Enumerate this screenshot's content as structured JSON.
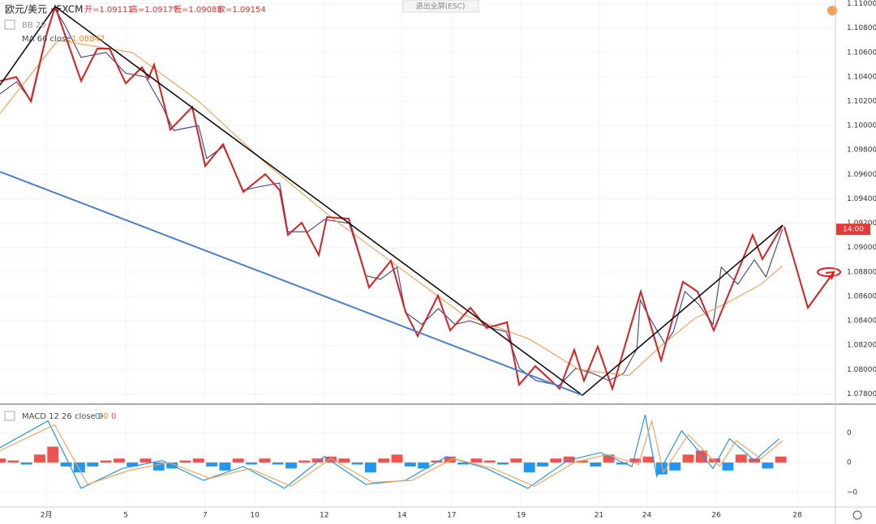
{
  "exit_button": "退出全屏(ESC)",
  "chart_data": [
    {
      "type": "line",
      "title": "欧元/美元 · FXCM",
      "ohlc": [
        "开=1.09111",
        "高=1.09177",
        "低=1.09085",
        "收=1.09154"
      ],
      "indicators": [
        "BB 20"
      ],
      "price_tag": "14:00",
      "xlim": [
        0,
        505
      ],
      "ylim": [
        1.0773,
        1.1103
      ],
      "grid": true,
      "xticks": [
        {
          "value": 28,
          "label": "2月"
        },
        {
          "value": 76,
          "label": "5"
        },
        {
          "value": 124,
          "label": "7"
        },
        {
          "value": 154,
          "label": "10"
        },
        {
          "value": 196,
          "label": "12"
        },
        {
          "value": 243,
          "label": "14"
        },
        {
          "value": 273,
          "label": "17"
        },
        {
          "value": 315,
          "label": "19"
        },
        {
          "value": 362,
          "label": "21"
        },
        {
          "value": 391,
          "label": "24"
        },
        {
          "value": 433,
          "label": "26"
        },
        {
          "value": 482,
          "label": "28"
        }
      ],
      "yticks": [
        {
          "value": 1.078,
          "label": "1.07800"
        },
        {
          "value": 1.08,
          "label": "1.08000"
        },
        {
          "value": 1.082,
          "label": "1.08200"
        },
        {
          "value": 1.084,
          "label": "1.08400"
        },
        {
          "value": 1.086,
          "label": "1.08600"
        },
        {
          "value": 1.088,
          "label": "1.08800"
        },
        {
          "value": 1.09,
          "label": "1.09000"
        },
        {
          "value": 1.092,
          "label": "1.09200"
        },
        {
          "value": 1.094,
          "label": "1.09400"
        },
        {
          "value": 1.096,
          "label": "1.09600"
        },
        {
          "value": 1.098,
          "label": "1.09800"
        },
        {
          "value": 1.1,
          "label": "1.10000"
        },
        {
          "value": 1.102,
          "label": "1.10200"
        },
        {
          "value": 1.104,
          "label": "1.10400"
        },
        {
          "value": 1.106,
          "label": "1.10600"
        },
        {
          "value": 1.108,
          "label": "1.10800"
        },
        {
          "value": 1.11,
          "label": "1.11000"
        }
      ],
      "series": [
        {
          "name": "欧元/美元",
          "style": "line",
          "color": "#4b4f8c",
          "x": [
            0,
            10,
            19,
            28,
            33,
            39,
            49,
            64,
            76,
            88,
            98,
            105,
            120,
            125,
            135,
            147,
            157,
            169,
            174,
            186,
            196,
            211,
            221,
            230,
            240,
            245,
            255,
            265,
            275,
            284,
            297,
            306,
            314,
            324,
            338,
            348,
            358,
            368,
            377,
            385,
            387,
            392,
            402,
            407,
            414,
            422,
            431,
            436,
            446,
            456,
            463,
            473
          ],
          "values": [
            1.1026,
            1.1036,
            1.102,
            1.1073,
            1.1096,
            1.1083,
            1.1056,
            1.106,
            1.1043,
            1.104,
            1.1016,
            1.0996,
            1.1,
            1.0973,
            1.0983,
            1.0947,
            1.095,
            1.0953,
            1.0913,
            1.0913,
            1.0923,
            1.092,
            1.0877,
            1.0874,
            1.0884,
            1.0847,
            1.0837,
            1.085,
            1.0837,
            1.084,
            1.0834,
            1.0831,
            1.0801,
            1.0791,
            1.0787,
            1.0801,
            1.0797,
            1.0791,
            1.0797,
            1.0817,
            1.0857,
            1.0844,
            1.0821,
            1.0831,
            1.0864,
            1.0854,
            1.0837,
            1.0884,
            1.087,
            1.089,
            1.0876,
            1.0915
          ]
        },
        {
          "name": "MA 66 close",
          "style": "line",
          "color": "#f5a35c",
          "last_value": 1.08847,
          "x": [
            0,
            35,
            80,
            120,
            160,
            200,
            240,
            280,
            320,
            350,
            380,
            400,
            420,
            440,
            460,
            473
          ],
          "values": [
            1.101,
            1.107,
            1.106,
            1.102,
            1.097,
            1.0925,
            1.0885,
            1.0845,
            1.0825,
            1.08,
            1.0795,
            1.082,
            1.0842,
            1.0855,
            1.087,
            1.0885
          ]
        }
      ]
    },
    {
      "type": "line",
      "title": "MACD 12 26 close 9",
      "legend_values": [
        0,
        0,
        0
      ],
      "xlim": [
        0,
        505
      ],
      "ylim": [
        -0.0022,
        0.0029
      ],
      "yticks": [
        {
          "value": -0.0015,
          "label": "−0"
        },
        0,
        {
          "value": 0.0015,
          "label": "0"
        }
      ],
      "series": [
        {
          "name": "Histogram",
          "style": "bar",
          "color": "#ef5350",
          "negative_color": "#2196f3",
          "x": [
            0,
            8,
            16,
            24,
            32,
            40,
            48,
            56,
            64,
            72,
            80,
            88,
            96,
            104,
            112,
            120,
            128,
            136,
            144,
            152,
            160,
            168,
            176,
            184,
            192,
            200,
            208,
            216,
            224,
            232,
            240,
            248,
            256,
            264,
            272,
            280,
            288,
            296,
            304,
            312,
            320,
            328,
            336,
            344,
            352,
            360,
            368,
            376,
            384,
            392,
            400,
            408,
            416,
            424,
            432,
            440,
            448,
            456,
            464,
            472
          ],
          "values": [
            0.0002,
            0.0001,
            -0.0001,
            0.0004,
            0.0008,
            -0.0002,
            -0.0005,
            -0.0002,
            0.0001,
            0.0002,
            -0.0002,
            0.0002,
            -0.0004,
            -0.0003,
            0.0001,
            0.0002,
            -0.0002,
            -0.0004,
            0.0002,
            -0.0001,
            0.0002,
            -0.0001,
            -0.0003,
            0.0001,
            0.0002,
            0.0003,
            0.0002,
            -0.0001,
            -0.0005,
            0.0002,
            0.0004,
            -0.0002,
            -0.0003,
            0.0001,
            0.0003,
            -0.0001,
            0.0002,
            0.0001,
            -0.0001,
            0.0002,
            -0.0005,
            -0.0002,
            0.0002,
            0.0003,
            0.0001,
            -0.0002,
            0.0004,
            -0.0001,
            0.0002,
            0.0003,
            -0.0006,
            -0.0004,
            0.0004,
            0.0006,
            0.0002,
            -0.0004,
            0.0004,
            0.0002,
            -0.0003,
            0.0003
          ]
        },
        {
          "name": "MACD",
          "style": "line",
          "color": "#2196f3",
          "x": [
            0,
            29,
            49,
            74,
            98,
            123,
            147,
            172,
            196,
            221,
            245,
            270,
            294,
            319,
            343,
            363,
            382,
            390,
            397,
            412,
            431,
            441,
            456,
            471
          ],
          "values": [
            0.00075,
            0.0021,
            -0.0013,
            -0.0003,
            0.0001,
            -0.0009,
            -0.0002,
            -0.0013,
            0.0003,
            -0.0011,
            -0.0009,
            0.0003,
            -0.0003,
            -0.0013,
            0.0001,
            0.0005,
            -0.0002,
            0.0024,
            -0.0007,
            0.0016,
            -0.0003,
            0.0012,
            0.0001,
            0.0012
          ]
        },
        {
          "name": "Signal",
          "style": "line",
          "color": "#f5a35c",
          "x": [
            0,
            33,
            53,
            78,
            102,
            127,
            151,
            176,
            200,
            225,
            249,
            274,
            298,
            323,
            347,
            367,
            386,
            394,
            401,
            416,
            435,
            445,
            460,
            473
          ],
          "values": [
            0.0006,
            0.0019,
            -0.0011,
            -0.0004,
            0.0,
            -0.0008,
            -0.0003,
            -0.0012,
            0.0002,
            -0.001,
            -0.0009,
            0.0002,
            -0.0003,
            -0.0012,
            0.0,
            0.0004,
            -0.0001,
            0.0021,
            -0.0005,
            0.0014,
            -0.0002,
            0.0011,
            0.0002,
            0.0011
          ]
        }
      ]
    }
  ]
}
